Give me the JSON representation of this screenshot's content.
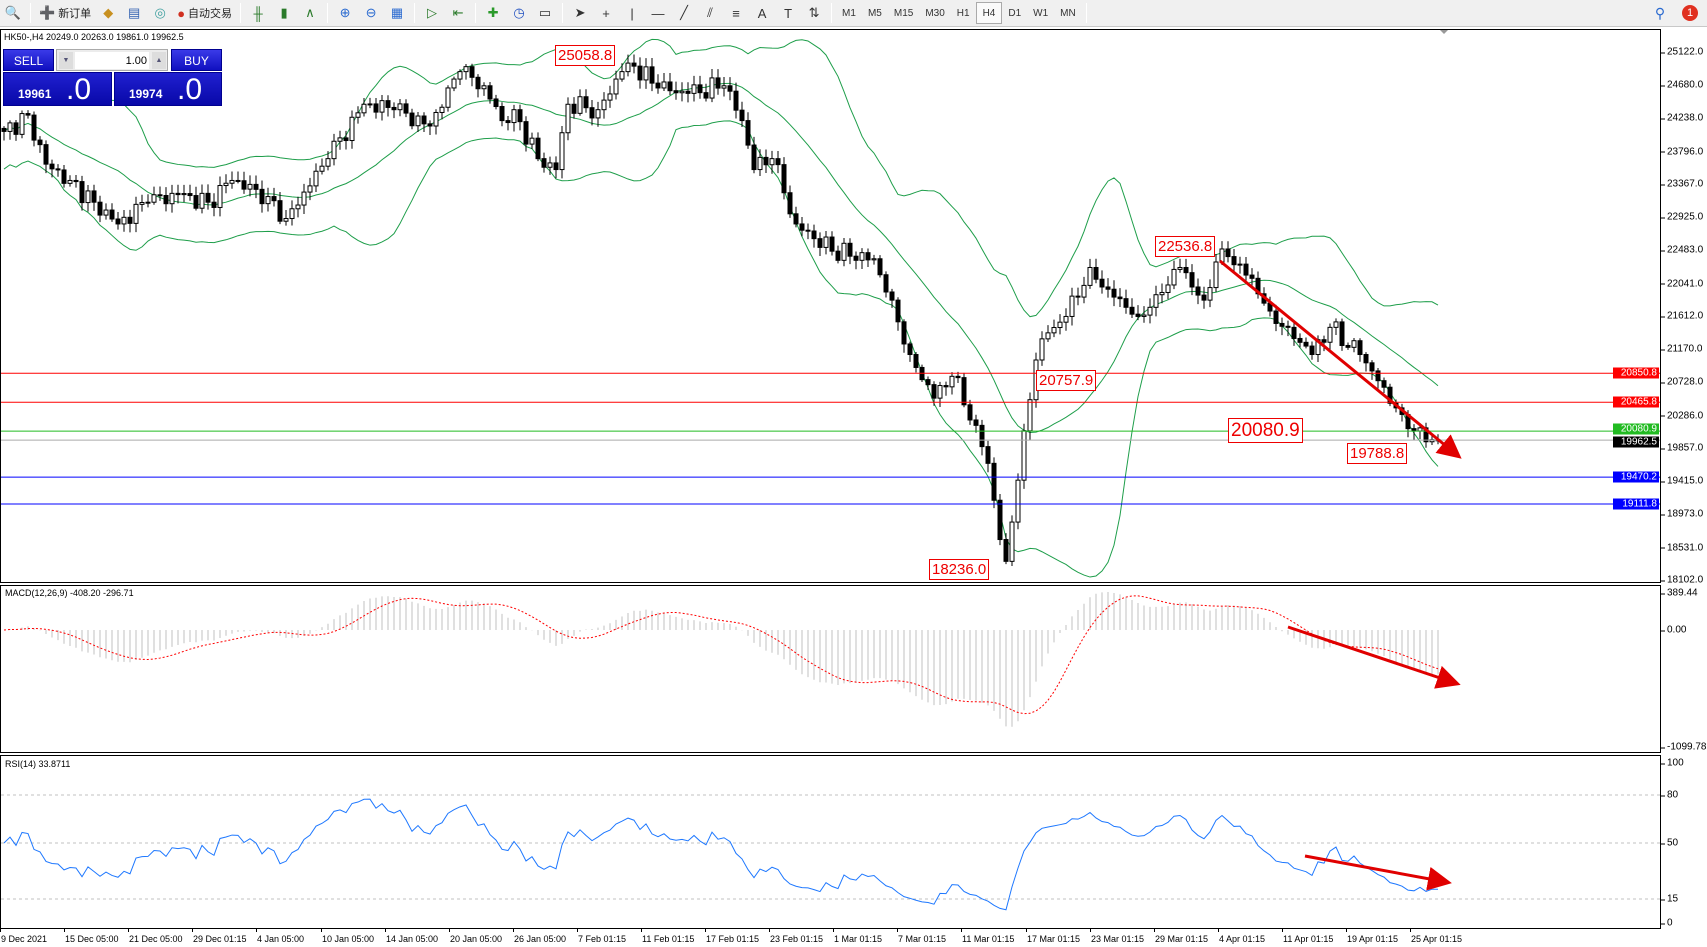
{
  "toolbar": {
    "new_order_label": "新订单",
    "auto_trade_label": "自动交易",
    "timeframes": [
      "M1",
      "M5",
      "M15",
      "M30",
      "H1",
      "H4",
      "D1",
      "W1",
      "MN"
    ],
    "active_timeframe": "H4",
    "notification_count": "1",
    "icons": [
      "zoom-icon",
      "new-order-icon",
      "history-icon",
      "print-icon",
      "signal-icon",
      "auto-trade-icon",
      "bar-chart-icon",
      "candle-chart-icon",
      "line-chart-icon",
      "zoom-in-icon",
      "zoom-out-icon",
      "tile-icon",
      "autoscroll-icon",
      "chart-shift-icon",
      "indicators-icon",
      "period-icon",
      "template-icon",
      "cursor-icon",
      "crosshair-icon",
      "vertical-line-icon",
      "horizontal-line-icon",
      "trendline-icon",
      "channel-icon",
      "fibonacci-icon",
      "text-icon",
      "label-icon",
      "arrows-icon"
    ]
  },
  "chart": {
    "header": "HK50-,H4  20249.0 20263.0 19861.0 19962.5",
    "macd_label": "MACD(12,26,9) -408.20 -296.71",
    "rsi_label": "RSI(14) 33.8711"
  },
  "trade_panel": {
    "sell_label": "SELL",
    "buy_label": "BUY",
    "lot": "1.00",
    "sell_small": "19961",
    "sell_big": ".0",
    "buy_small": "19974",
    "buy_big": ".0"
  },
  "price_axis": [
    "25122.0",
    "24680.0",
    "24238.0",
    "23796.0",
    "23367.0",
    "22925.0",
    "22483.0",
    "22041.0",
    "21612.0",
    "21170.0",
    "20728.0",
    "20286.0",
    "19857.0",
    "19415.0",
    "18973.0",
    "18531.0",
    "18102.0"
  ],
  "price_tags": [
    {
      "value": "20850.8",
      "color": "#ff0000",
      "line": true
    },
    {
      "value": "20465.8",
      "color": "#ff0000",
      "line": true
    },
    {
      "value": "20080.9",
      "color": "#22bb22",
      "line": true
    },
    {
      "value": "19962.5",
      "color": "#000000",
      "line": true
    },
    {
      "value": "19470.2",
      "color": "#0000ff",
      "line": true
    },
    {
      "value": "19111.8",
      "color": "#0000ff",
      "line": true
    }
  ],
  "macd_axis": [
    "389.44",
    "0.00",
    "-1099.78"
  ],
  "rsi_axis": [
    "100",
    "80",
    "50",
    "15",
    "0"
  ],
  "annotations": [
    "25058.8",
    "22536.8",
    "20757.9",
    "18236.0",
    "20080.9",
    "19788.8"
  ],
  "date_labels": [
    "9 Dec 2021",
    "15 Dec 05:00",
    "21 Dec 05:00",
    "29 Dec 01:15",
    "4 Jan 05:00",
    "10 Jan 05:00",
    "14 Jan 05:00",
    "20 Jan 05:00",
    "26 Jan 05:00",
    "7 Feb 01:15",
    "11 Feb 01:15",
    "17 Feb 01:15",
    "23 Feb 01:15",
    "1 Mar 01:15",
    "7 Mar 01:15",
    "11 Mar 01:15",
    "17 Mar 01:15",
    "23 Mar 01:15",
    "29 Mar 01:15",
    "4 Apr 01:15",
    "11 Apr 01:15",
    "19 Apr 01:15",
    "25 Apr 01:15"
  ],
  "chart_data": {
    "type": "candlestick",
    "symbol": "HK50-",
    "timeframe": "H4",
    "ylim": [
      18102.0,
      25122.0
    ],
    "close_path_by_bar": [
      [
        0,
        24066
      ],
      [
        4,
        24283
      ],
      [
        7,
        23631
      ],
      [
        11,
        23414
      ],
      [
        15,
        23125
      ],
      [
        19,
        22836
      ],
      [
        24,
        23125
      ],
      [
        29,
        23226
      ],
      [
        34,
        23125
      ],
      [
        38,
        23414
      ],
      [
        44,
        23200
      ],
      [
        47,
        22908
      ],
      [
        51,
        23342
      ],
      [
        54,
        23704
      ],
      [
        60,
        24427
      ],
      [
        65,
        24355
      ],
      [
        71,
        24138
      ],
      [
        74,
        24644
      ],
      [
        76,
        24861
      ],
      [
        80,
        24673
      ],
      [
        83,
        24210
      ],
      [
        85,
        24355
      ],
      [
        89,
        23704
      ],
      [
        92,
        23559
      ],
      [
        94,
        24427
      ],
      [
        99,
        24355
      ],
      [
        103,
        24861
      ],
      [
        105,
        24934
      ],
      [
        109,
        24644
      ],
      [
        114,
        24572
      ],
      [
        120,
        24673
      ],
      [
        123,
        24210
      ],
      [
        125,
        23559
      ],
      [
        128,
        23704
      ],
      [
        132,
        22836
      ],
      [
        138,
        22474
      ],
      [
        145,
        22373
      ],
      [
        148,
        21823
      ],
      [
        151,
        21100
      ],
      [
        155,
        20520
      ],
      [
        158,
        20810
      ],
      [
        162,
        20158
      ],
      [
        164,
        19653
      ],
      [
        166,
        18640
      ],
      [
        167,
        18350
      ],
      [
        170,
        20085
      ],
      [
        172,
        21027
      ],
      [
        174,
        21388
      ],
      [
        177,
        21606
      ],
      [
        181,
        22257
      ],
      [
        184,
        21968
      ],
      [
        189,
        21606
      ],
      [
        192,
        21895
      ],
      [
        196,
        22257
      ],
      [
        200,
        21823
      ],
      [
        202,
        22330
      ],
      [
        204,
        22402
      ],
      [
        208,
        22113
      ],
      [
        211,
        21678
      ],
      [
        214,
        21461
      ],
      [
        218,
        21100
      ],
      [
        221,
        21461
      ],
      [
        226,
        21100
      ],
      [
        230,
        20665
      ],
      [
        233,
        20303
      ],
      [
        237,
        19940
      ],
      [
        239,
        19962.5
      ]
    ],
    "indicators": [
      "Bollinger Bands(20,2)",
      "MACD(12,26,9)",
      "RSI(14)"
    ],
    "colors": {
      "bands": "#1e9e4a",
      "macd_signal": "#ff0000",
      "macd_hist": "#c0c0c0",
      "rsi": "#1e78ff",
      "arrows": "#e00000"
    }
  }
}
